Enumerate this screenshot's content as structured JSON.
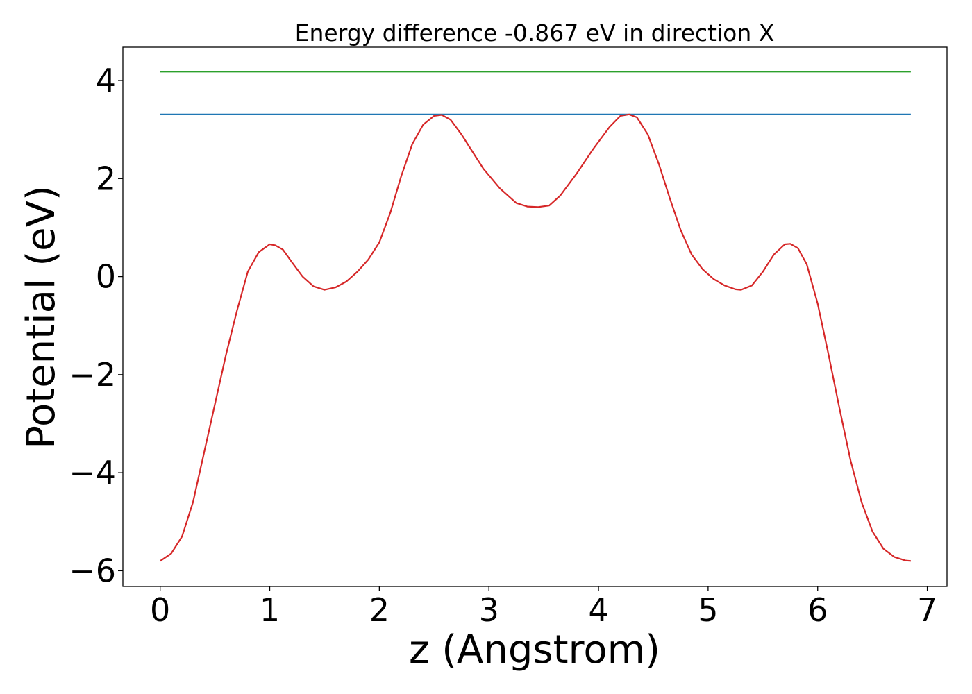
{
  "chart_data": {
    "type": "line",
    "title": "Energy difference -0.867 eV in direction X",
    "xlabel": "z (Angstrom)",
    "ylabel": "Potential (eV)",
    "xlim": [
      -0.34,
      7.18
    ],
    "ylim": [
      -6.32,
      4.68
    ],
    "xticks": [
      0,
      1,
      2,
      3,
      4,
      5,
      6,
      7
    ],
    "xtick_labels": [
      "0",
      "1",
      "2",
      "3",
      "4",
      "5",
      "6",
      "7"
    ],
    "yticks": [
      4,
      2,
      0,
      -2,
      -4,
      -6
    ],
    "ytick_labels": [
      "4",
      "2",
      "0",
      "−2",
      "−4",
      "−6"
    ],
    "grid": false,
    "series": [
      {
        "color": "#2ca02c",
        "x": [
          0,
          6.85
        ],
        "y": [
          4.18,
          4.18
        ]
      },
      {
        "color": "#1f77b4",
        "x": [
          0,
          6.85
        ],
        "y": [
          3.31,
          3.31
        ]
      },
      {
        "color": "#d62728",
        "x": [
          0,
          0.1,
          0.2,
          0.3,
          0.4,
          0.5,
          0.6,
          0.7,
          0.8,
          0.9,
          1.0,
          1.05,
          1.12,
          1.2,
          1.3,
          1.4,
          1.5,
          1.6,
          1.7,
          1.8,
          1.9,
          2.0,
          2.1,
          2.2,
          2.3,
          2.4,
          2.5,
          2.57,
          2.65,
          2.75,
          2.85,
          2.95,
          3.1,
          3.25,
          3.35,
          3.45,
          3.55,
          3.65,
          3.8,
          3.95,
          4.1,
          4.2,
          4.28,
          4.35,
          4.45,
          4.55,
          4.65,
          4.75,
          4.85,
          4.95,
          5.05,
          5.15,
          5.25,
          5.3,
          5.4,
          5.5,
          5.6,
          5.7,
          5.75,
          5.82,
          5.9,
          6.0,
          6.1,
          6.2,
          6.3,
          6.4,
          6.5,
          6.6,
          6.7,
          6.8,
          6.85
        ],
        "y": [
          -5.8,
          -5.65,
          -5.3,
          -4.6,
          -3.6,
          -2.6,
          -1.6,
          -0.7,
          0.1,
          0.5,
          0.66,
          0.64,
          0.55,
          0.3,
          0.0,
          -0.2,
          -0.27,
          -0.22,
          -0.1,
          0.1,
          0.35,
          0.7,
          1.3,
          2.05,
          2.7,
          3.1,
          3.28,
          3.3,
          3.2,
          2.9,
          2.55,
          2.2,
          1.8,
          1.5,
          1.43,
          1.42,
          1.45,
          1.65,
          2.1,
          2.6,
          3.05,
          3.28,
          3.31,
          3.25,
          2.9,
          2.3,
          1.6,
          0.95,
          0.45,
          0.15,
          -0.05,
          -0.18,
          -0.26,
          -0.27,
          -0.18,
          0.1,
          0.45,
          0.66,
          0.67,
          0.58,
          0.25,
          -0.55,
          -1.6,
          -2.7,
          -3.75,
          -4.6,
          -5.2,
          -5.55,
          -5.72,
          -5.79,
          -5.8
        ]
      }
    ]
  }
}
